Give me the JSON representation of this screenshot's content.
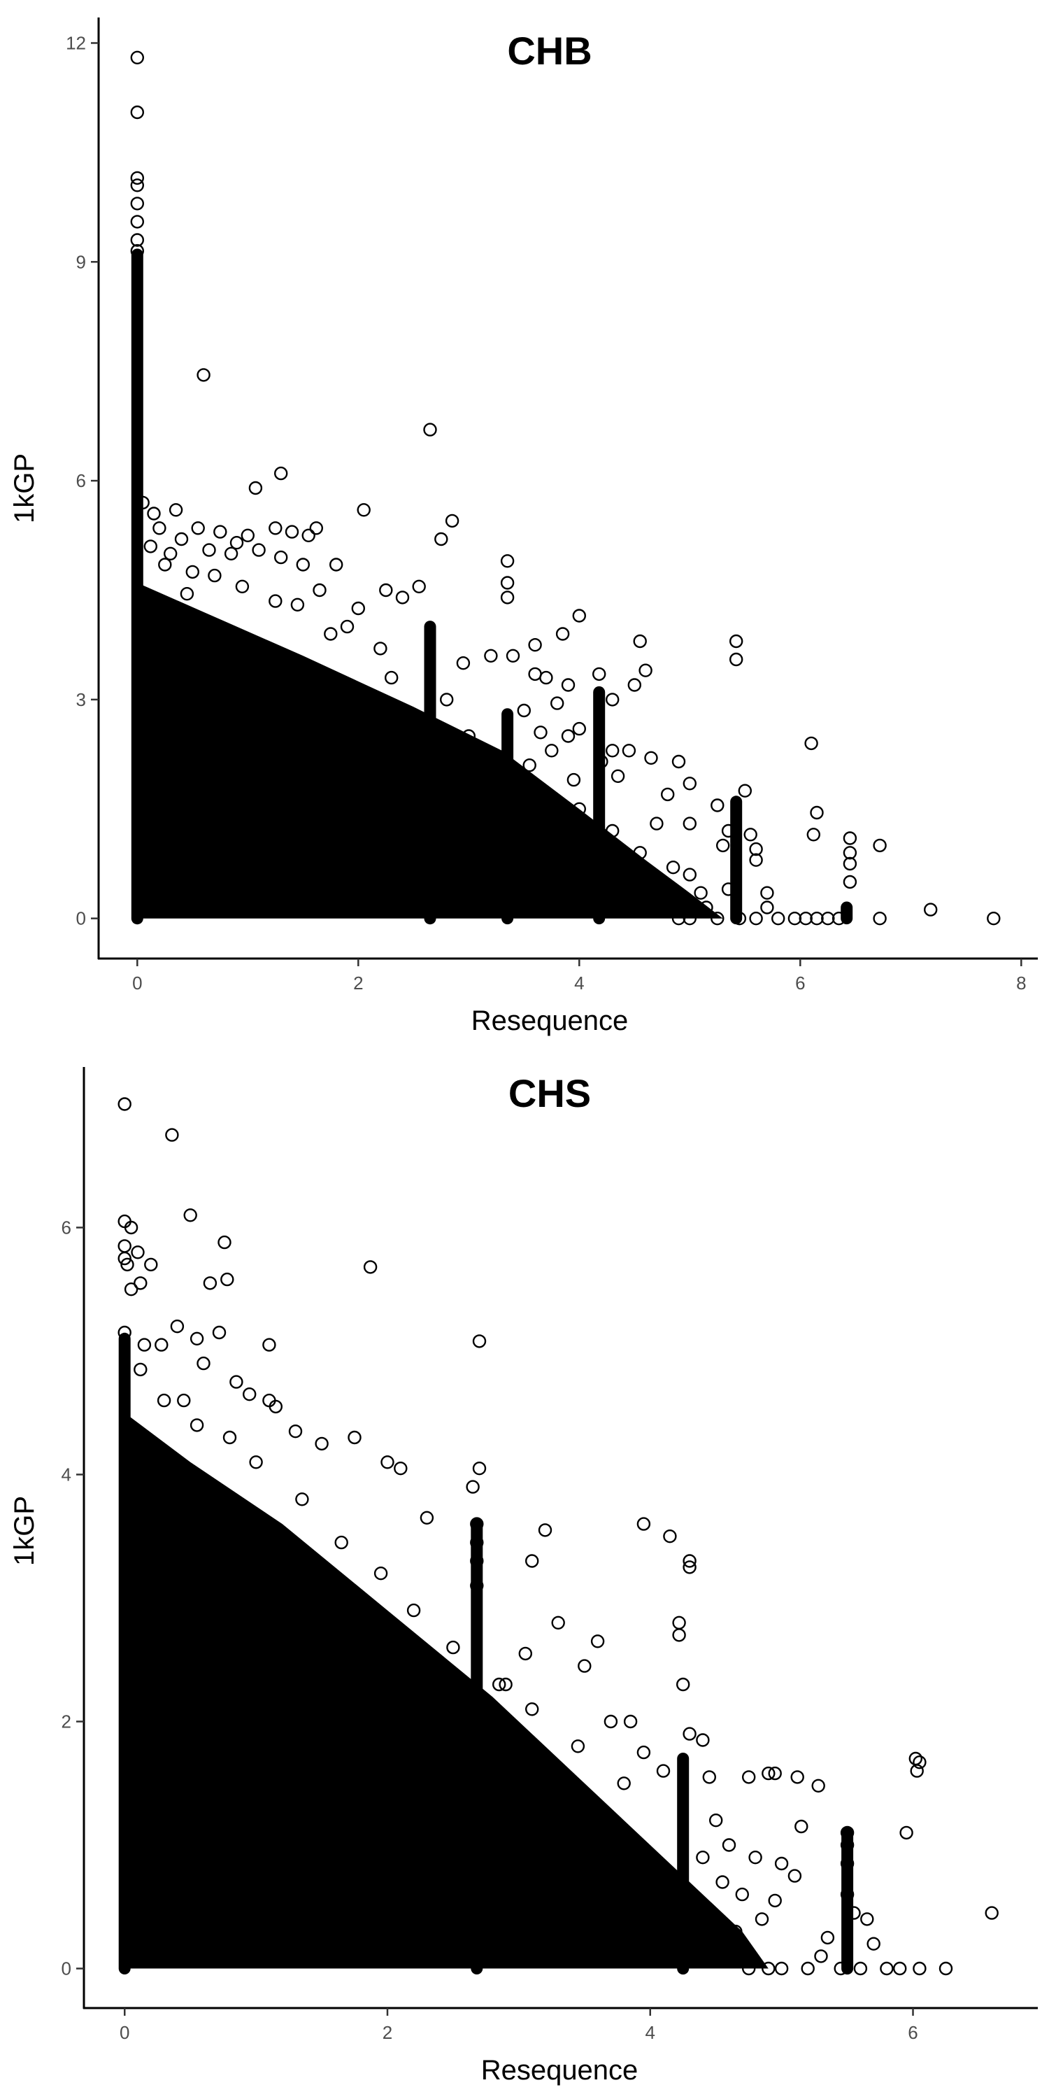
{
  "chart_data": [
    {
      "type": "scatter",
      "title": "CHB",
      "xlabel": "Resequence",
      "ylabel": "1kGP",
      "xlim": [
        -0.35,
        8.15
      ],
      "ylim": [
        -0.55,
        12.35
      ],
      "x_ticks": [
        0,
        2,
        4,
        6,
        8
      ],
      "y_ticks": [
        0,
        3,
        6,
        9,
        12
      ],
      "grid": false,
      "legend": "none",
      "marker": "open-circle",
      "dense_region": [
        [
          0,
          0
        ],
        [
          0,
          4.6
        ],
        [
          0.6,
          4.2
        ],
        [
          1.5,
          3.6
        ],
        [
          2.5,
          2.9
        ],
        [
          3.3,
          2.3
        ],
        [
          4.0,
          1.5
        ],
        [
          4.6,
          0.8
        ],
        [
          5.0,
          0.35
        ],
        [
          5.3,
          0
        ]
      ],
      "vertical_streaks": [
        {
          "x": 0.0,
          "y": [
            0,
            9.1
          ]
        },
        {
          "x": 2.65,
          "y": [
            0,
            4.0
          ]
        },
        {
          "x": 3.35,
          "y": [
            0,
            2.8
          ]
        },
        {
          "x": 4.18,
          "y": [
            0,
            3.1
          ]
        },
        {
          "x": 5.42,
          "y": [
            0,
            1.6
          ]
        },
        {
          "x": 6.42,
          "y": [
            0,
            0.15
          ]
        }
      ],
      "points": [
        [
          0.0,
          11.8
        ],
        [
          0.0,
          11.05
        ],
        [
          0.0,
          10.15
        ],
        [
          0.0,
          10.05
        ],
        [
          0.0,
          9.8
        ],
        [
          0.0,
          9.55
        ],
        [
          0.0,
          9.3
        ],
        [
          0.0,
          9.15
        ],
        [
          0.6,
          7.45
        ],
        [
          2.65,
          6.7
        ],
        [
          1.3,
          6.1
        ],
        [
          1.07,
          5.9
        ],
        [
          2.05,
          5.6
        ],
        [
          2.85,
          5.45
        ],
        [
          2.75,
          5.2
        ],
        [
          0.05,
          5.7
        ],
        [
          0.15,
          5.55
        ],
        [
          0.35,
          5.6
        ],
        [
          0.2,
          5.35
        ],
        [
          0.4,
          5.2
        ],
        [
          0.55,
          5.35
        ],
        [
          0.75,
          5.3
        ],
        [
          0.9,
          5.15
        ],
        [
          1.0,
          5.25
        ],
        [
          1.25,
          5.35
        ],
        [
          1.4,
          5.3
        ],
        [
          1.62,
          5.35
        ],
        [
          1.55,
          5.25
        ],
        [
          0.3,
          5.0
        ],
        [
          0.65,
          5.05
        ],
        [
          0.85,
          5.0
        ],
        [
          1.1,
          5.05
        ],
        [
          1.3,
          4.95
        ],
        [
          1.5,
          4.85
        ],
        [
          1.8,
          4.85
        ],
        [
          3.35,
          4.9
        ],
        [
          3.35,
          4.6
        ],
        [
          3.35,
          4.4
        ],
        [
          4.0,
          4.15
        ],
        [
          3.85,
          3.9
        ],
        [
          3.6,
          3.75
        ],
        [
          4.55,
          3.8
        ],
        [
          5.42,
          3.8
        ],
        [
          5.42,
          3.55
        ],
        [
          4.6,
          3.4
        ],
        [
          4.5,
          3.2
        ],
        [
          4.18,
          3.35
        ],
        [
          3.6,
          3.35
        ],
        [
          2.55,
          4.55
        ],
        [
          2.25,
          4.5
        ],
        [
          2.4,
          4.4
        ],
        [
          2.0,
          4.25
        ],
        [
          1.65,
          4.5
        ],
        [
          1.45,
          4.3
        ],
        [
          2.95,
          3.5
        ],
        [
          3.2,
          3.6
        ],
        [
          3.4,
          3.6
        ],
        [
          3.7,
          3.3
        ],
        [
          3.9,
          3.2
        ],
        [
          4.3,
          3.0
        ],
        [
          3.8,
          2.95
        ],
        [
          3.5,
          2.85
        ],
        [
          4.0,
          2.6
        ],
        [
          4.3,
          2.3
        ],
        [
          4.45,
          2.3
        ],
        [
          4.2,
          2.15
        ],
        [
          4.35,
          1.95
        ],
        [
          3.9,
          2.5
        ],
        [
          3.65,
          2.55
        ],
        [
          3.75,
          2.3
        ],
        [
          4.65,
          2.2
        ],
        [
          4.9,
          2.15
        ],
        [
          5.0,
          1.85
        ],
        [
          4.8,
          1.7
        ],
        [
          5.0,
          1.3
        ],
        [
          5.25,
          1.55
        ],
        [
          5.35,
          1.2
        ],
        [
          5.5,
          1.75
        ],
        [
          5.55,
          1.15
        ],
        [
          5.6,
          0.95
        ],
        [
          5.6,
          0.8
        ],
        [
          5.3,
          1.0
        ],
        [
          4.85,
          0.7
        ],
        [
          5.0,
          0.6
        ],
        [
          5.1,
          0.35
        ],
        [
          4.95,
          0.25
        ],
        [
          5.15,
          0.15
        ],
        [
          5.35,
          0.4
        ],
        [
          5.7,
          0.35
        ],
        [
          5.7,
          0.15
        ],
        [
          6.1,
          2.4
        ],
        [
          6.15,
          1.45
        ],
        [
          6.12,
          1.15
        ],
        [
          6.45,
          1.1
        ],
        [
          6.45,
          0.9
        ],
        [
          6.45,
          0.75
        ],
        [
          6.45,
          0.5
        ],
        [
          6.72,
          1.0
        ],
        [
          7.18,
          0.12
        ],
        [
          5.8,
          0.0
        ],
        [
          5.95,
          0.0
        ],
        [
          6.05,
          0.0
        ],
        [
          6.15,
          0.0
        ],
        [
          6.25,
          0.0
        ],
        [
          6.35,
          0.0
        ],
        [
          6.72,
          0.0
        ],
        [
          7.75,
          0.0
        ],
        [
          5.25,
          0.0
        ],
        [
          5.45,
          0.0
        ],
        [
          5.6,
          0.0
        ],
        [
          5.0,
          0.0
        ],
        [
          4.9,
          0.0
        ],
        [
          4.7,
          0.4
        ],
        [
          4.4,
          0.6
        ],
        [
          4.55,
          0.9
        ],
        [
          4.3,
          1.2
        ],
        [
          4.7,
          1.3
        ],
        [
          4.0,
          1.5
        ],
        [
          3.7,
          1.7
        ],
        [
          3.95,
          1.9
        ],
        [
          3.55,
          2.1
        ],
        [
          3.15,
          2.2
        ],
        [
          3.0,
          2.5
        ],
        [
          2.8,
          3.0
        ],
        [
          2.3,
          3.3
        ],
        [
          2.2,
          3.7
        ],
        [
          1.9,
          4.0
        ],
        [
          1.75,
          3.9
        ],
        [
          1.25,
          4.35
        ],
        [
          0.95,
          4.55
        ],
        [
          0.7,
          4.7
        ],
        [
          0.5,
          4.75
        ],
        [
          0.25,
          4.85
        ],
        [
          0.12,
          5.1
        ],
        [
          0.45,
          4.45
        ]
      ]
    },
    {
      "type": "scatter",
      "title": "CHS",
      "xlabel": "Resequence",
      "ylabel": "1kGP",
      "xlim": [
        -0.31,
        6.95
      ],
      "ylim": [
        -0.32,
        7.3
      ],
      "x_ticks": [
        0,
        2,
        4,
        6
      ],
      "y_ticks": [
        0,
        2,
        4,
        6
      ],
      "grid": false,
      "legend": "none",
      "marker": "open-circle",
      "dense_region": [
        [
          0,
          0
        ],
        [
          0,
          4.5
        ],
        [
          0.5,
          4.1
        ],
        [
          1.2,
          3.6
        ],
        [
          2.0,
          2.9
        ],
        [
          2.8,
          2.2
        ],
        [
          3.6,
          1.4
        ],
        [
          4.2,
          0.8
        ],
        [
          4.7,
          0.3
        ],
        [
          4.9,
          0
        ]
      ],
      "vertical_streaks": [
        {
          "x": 0.0,
          "y": [
            0,
            5.1
          ]
        },
        {
          "x": 2.68,
          "y": [
            0,
            3.6
          ]
        },
        {
          "x": 4.25,
          "y": [
            0,
            1.7
          ]
        },
        {
          "x": 5.5,
          "y": [
            0,
            1.1
          ]
        }
      ],
      "points": [
        [
          0.0,
          7.0
        ],
        [
          0.36,
          6.75
        ],
        [
          0.5,
          6.1
        ],
        [
          0.0,
          6.05
        ],
        [
          0.05,
          6.0
        ],
        [
          0.0,
          5.85
        ],
        [
          0.1,
          5.8
        ],
        [
          0.0,
          5.75
        ],
        [
          0.02,
          5.7
        ],
        [
          0.2,
          5.7
        ],
        [
          0.12,
          5.55
        ],
        [
          0.05,
          5.5
        ],
        [
          0.76,
          5.88
        ],
        [
          0.65,
          5.55
        ],
        [
          0.78,
          5.58
        ],
        [
          1.87,
          5.68
        ],
        [
          2.7,
          5.08
        ],
        [
          1.1,
          5.05
        ],
        [
          0.4,
          5.2
        ],
        [
          0.55,
          5.1
        ],
        [
          0.72,
          5.15
        ],
        [
          0.28,
          5.05
        ],
        [
          0.15,
          5.05
        ],
        [
          0.0,
          5.15
        ],
        [
          0.85,
          4.75
        ],
        [
          0.6,
          4.9
        ],
        [
          1.1,
          4.6
        ],
        [
          1.15,
          4.55
        ],
        [
          1.3,
          4.35
        ],
        [
          0.95,
          4.65
        ],
        [
          0.45,
          4.6
        ],
        [
          1.5,
          4.25
        ],
        [
          1.75,
          4.3
        ],
        [
          2.0,
          4.1
        ],
        [
          2.1,
          4.05
        ],
        [
          2.3,
          3.65
        ],
        [
          2.65,
          3.9
        ],
        [
          2.7,
          4.05
        ],
        [
          2.68,
          3.6
        ],
        [
          2.68,
          3.45
        ],
        [
          2.68,
          3.3
        ],
        [
          2.68,
          3.1
        ],
        [
          3.2,
          3.55
        ],
        [
          3.95,
          3.6
        ],
        [
          4.15,
          3.5
        ],
        [
          4.3,
          3.3
        ],
        [
          4.3,
          3.25
        ],
        [
          3.1,
          3.3
        ],
        [
          3.6,
          2.65
        ],
        [
          3.3,
          2.8
        ],
        [
          3.05,
          2.55
        ],
        [
          2.9,
          2.3
        ],
        [
          3.5,
          2.45
        ],
        [
          3.7,
          2.0
        ],
        [
          3.85,
          2.0
        ],
        [
          3.95,
          1.75
        ],
        [
          4.1,
          1.6
        ],
        [
          4.22,
          2.8
        ],
        [
          4.22,
          2.7
        ],
        [
          4.25,
          2.3
        ],
        [
          4.3,
          1.9
        ],
        [
          4.4,
          1.85
        ],
        [
          4.45,
          1.55
        ],
        [
          4.5,
          1.2
        ],
        [
          4.6,
          1.0
        ],
        [
          4.75,
          1.55
        ],
        [
          4.9,
          1.58
        ],
        [
          4.95,
          1.58
        ],
        [
          5.12,
          1.55
        ],
        [
          5.28,
          1.48
        ],
        [
          5.15,
          1.15
        ],
        [
          4.8,
          0.9
        ],
        [
          5.0,
          0.85
        ],
        [
          5.1,
          0.75
        ],
        [
          4.95,
          0.55
        ],
        [
          4.85,
          0.4
        ],
        [
          5.5,
          1.1
        ],
        [
          5.5,
          1.0
        ],
        [
          5.5,
          0.85
        ],
        [
          5.5,
          0.6
        ],
        [
          5.55,
          0.45
        ],
        [
          5.65,
          0.4
        ],
        [
          5.7,
          0.2
        ],
        [
          5.35,
          0.25
        ],
        [
          5.3,
          0.1
        ],
        [
          6.02,
          1.7
        ],
        [
          6.05,
          1.67
        ],
        [
          6.03,
          1.6
        ],
        [
          5.95,
          1.1
        ],
        [
          6.6,
          0.45
        ],
        [
          5.8,
          0.0
        ],
        [
          5.9,
          0.0
        ],
        [
          6.05,
          0.0
        ],
        [
          6.25,
          0.0
        ],
        [
          5.6,
          0.0
        ],
        [
          5.45,
          0.0
        ],
        [
          5.2,
          0.0
        ],
        [
          5.0,
          0.0
        ],
        [
          4.9,
          0.0
        ],
        [
          4.75,
          0.0
        ],
        [
          4.65,
          0.3
        ],
        [
          4.7,
          0.6
        ],
        [
          4.55,
          0.7
        ],
        [
          4.4,
          0.9
        ],
        [
          3.8,
          1.5
        ],
        [
          3.45,
          1.8
        ],
        [
          3.1,
          2.1
        ],
        [
          2.85,
          2.3
        ],
        [
          2.5,
          2.6
        ],
        [
          2.2,
          2.9
        ],
        [
          1.95,
          3.2
        ],
        [
          1.65,
          3.45
        ],
        [
          1.35,
          3.8
        ],
        [
          1.0,
          4.1
        ],
        [
          0.8,
          4.3
        ],
        [
          0.55,
          4.4
        ],
        [
          0.3,
          4.6
        ],
        [
          0.12,
          4.85
        ]
      ]
    }
  ]
}
